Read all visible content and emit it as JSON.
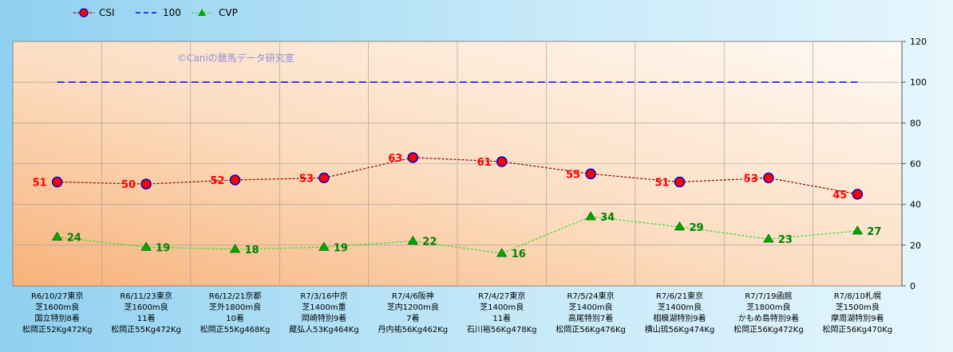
{
  "chart_data": {
    "type": "line",
    "watermark": "©Caniの競馬データ研究室",
    "legend": {
      "placement": "top-left",
      "entries": [
        "CSI",
        "100",
        "CVP"
      ]
    },
    "yaxis": {
      "position": "right",
      "ylim": [
        0,
        120
      ],
      "ticks": [
        0,
        20,
        40,
        60,
        80,
        100,
        120
      ]
    },
    "grid": true,
    "colors": {
      "csi": "#8b0000",
      "csi_marker": "#ff0000",
      "csi_marker_edge": "#0000cc",
      "ref": "#0000ff",
      "cvp": "#33dd33",
      "cvp_marker": "#00aa00"
    },
    "categories": [
      [
        "R6/10/27東京",
        "芝1600m良",
        "国立特別8着",
        "松岡正52Kg472Kg"
      ],
      [
        "R6/11/23東京",
        "芝1600m良",
        "11着",
        "松岡正55Kg472Kg"
      ],
      [
        "R6/12/21京都",
        "芝外1800m良",
        "10着",
        "松岡正55Kg468Kg"
      ],
      [
        "R7/3/16中京",
        "芝1400m重",
        "岡崎特別9着",
        "蔵弘人53Kg464Kg"
      ],
      [
        "R7/4/6阪神",
        "芝内1200m良",
        "7着",
        "丹内祐56Kg462Kg"
      ],
      [
        "R7/4/27東京",
        "芝1400m良",
        "11着",
        "石川裕56Kg478Kg"
      ],
      [
        "R7/5/24東京",
        "芝1400m良",
        "高尾特別7着",
        "松岡正56Kg476Kg"
      ],
      [
        "R7/6/21東京",
        "芝1400m良",
        "相模湖特別9着",
        "横山琉56Kg474Kg"
      ],
      [
        "R7/7/19函館",
        "芝1800m良",
        "かもめ島特別9着",
        "松岡正56Kg472Kg"
      ],
      [
        "R7/8/10札幌",
        "芝1500m良",
        "摩周湖特別9着",
        "松岡正56Kg470Kg"
      ]
    ],
    "series": [
      {
        "name": "CSI",
        "values": [
          51,
          50,
          52,
          53,
          63,
          61,
          55,
          51,
          53,
          45
        ]
      },
      {
        "name": "100",
        "values": [
          100,
          100,
          100,
          100,
          100,
          100,
          100,
          100,
          100,
          100
        ]
      },
      {
        "name": "CVP",
        "values": [
          24,
          19,
          18,
          19,
          22,
          16,
          34,
          29,
          23,
          27
        ]
      }
    ]
  }
}
